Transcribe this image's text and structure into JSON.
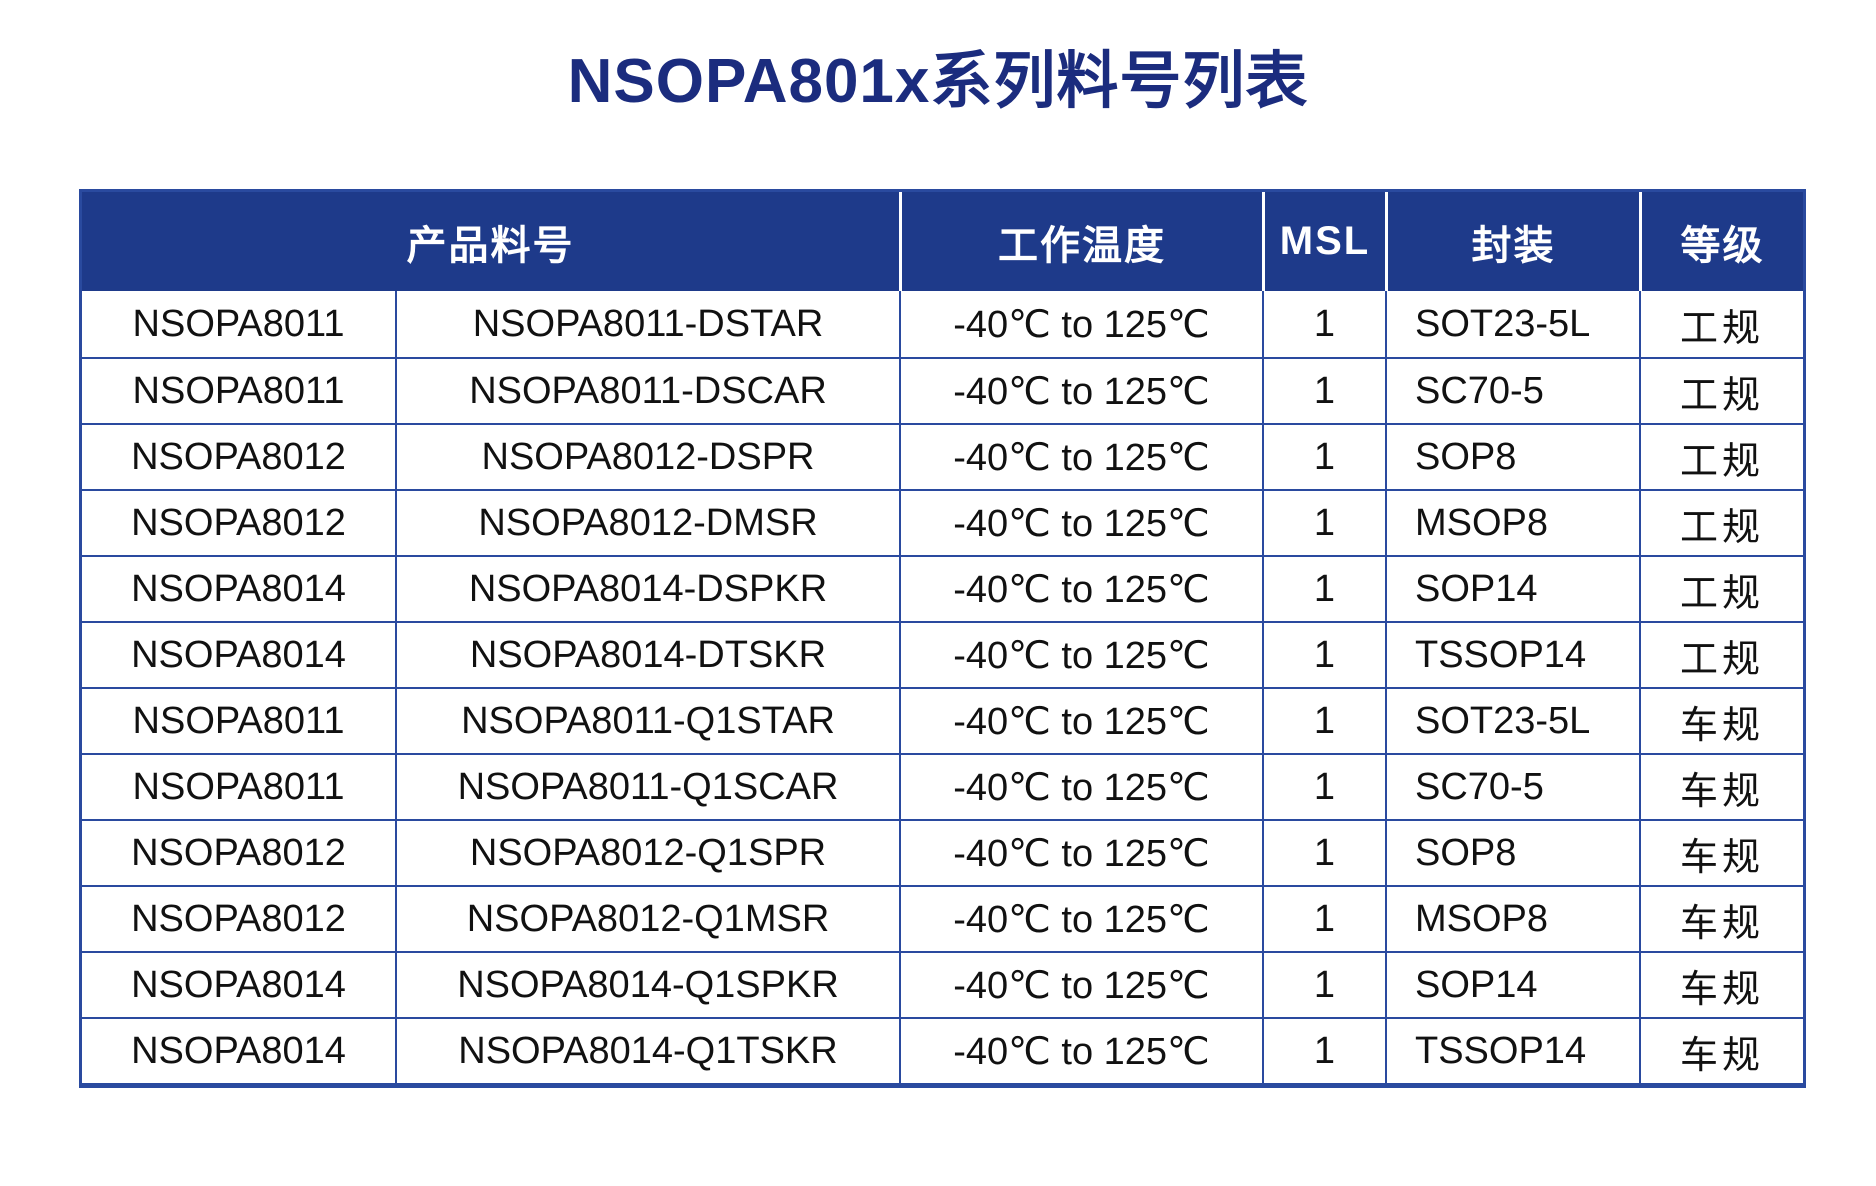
{
  "page": {
    "title": "NSOPA801x系列料号列表"
  },
  "colors": {
    "title-color": "#1b2c7e",
    "header-bg": "#1e3a8a",
    "header-text": "#ffffff",
    "border-color": "#2a4a9f",
    "body-text": "#111111"
  },
  "table": {
    "headers": {
      "part_number": "产品料号",
      "temperature": "工作温度",
      "msl": "MSL",
      "package": "封装",
      "grade": "等级"
    },
    "row_keys": [
      "family",
      "part",
      "temp",
      "msl",
      "package",
      "grade"
    ],
    "rows": [
      {
        "family": "NSOPA8011",
        "part": "NSOPA8011-DSTAR",
        "temp": "-40℃ to 125℃",
        "msl": "1",
        "package": "SOT23-5L",
        "grade": "工规"
      },
      {
        "family": "NSOPA8011",
        "part": "NSOPA8011-DSCAR",
        "temp": "-40℃ to 125℃",
        "msl": "1",
        "package": "SC70-5",
        "grade": "工规"
      },
      {
        "family": "NSOPA8012",
        "part": "NSOPA8012-DSPR",
        "temp": "-40℃ to 125℃",
        "msl": "1",
        "package": "SOP8",
        "grade": "工规"
      },
      {
        "family": "NSOPA8012",
        "part": "NSOPA8012-DMSR",
        "temp": "-40℃ to 125℃",
        "msl": "1",
        "package": "MSOP8",
        "grade": "工规"
      },
      {
        "family": "NSOPA8014",
        "part": "NSOPA8014-DSPKR",
        "temp": "-40℃ to 125℃",
        "msl": "1",
        "package": "SOP14",
        "grade": "工规"
      },
      {
        "family": "NSOPA8014",
        "part": "NSOPA8014-DTSKR",
        "temp": "-40℃ to 125℃",
        "msl": "1",
        "package": "TSSOP14",
        "grade": "工规"
      },
      {
        "family": "NSOPA8011",
        "part": "NSOPA8011-Q1STAR",
        "temp": "-40℃ to 125℃",
        "msl": "1",
        "package": "SOT23-5L",
        "grade": "车规"
      },
      {
        "family": "NSOPA8011",
        "part": "NSOPA8011-Q1SCAR",
        "temp": "-40℃ to 125℃",
        "msl": "1",
        "package": "SC70-5",
        "grade": "车规"
      },
      {
        "family": "NSOPA8012",
        "part": "NSOPA8012-Q1SPR",
        "temp": "-40℃ to 125℃",
        "msl": "1",
        "package": "SOP8",
        "grade": "车规"
      },
      {
        "family": "NSOPA8012",
        "part": "NSOPA8012-Q1MSR",
        "temp": "-40℃ to 125℃",
        "msl": "1",
        "package": "MSOP8",
        "grade": "车规"
      },
      {
        "family": "NSOPA8014",
        "part": "NSOPA8014-Q1SPKR",
        "temp": "-40℃ to 125℃",
        "msl": "1",
        "package": "SOP14",
        "grade": "车规"
      },
      {
        "family": "NSOPA8014",
        "part": "NSOPA8014-Q1TSKR",
        "temp": "-40℃ to 125℃",
        "msl": "1",
        "package": "TSSOP14",
        "grade": "车规"
      }
    ]
  }
}
